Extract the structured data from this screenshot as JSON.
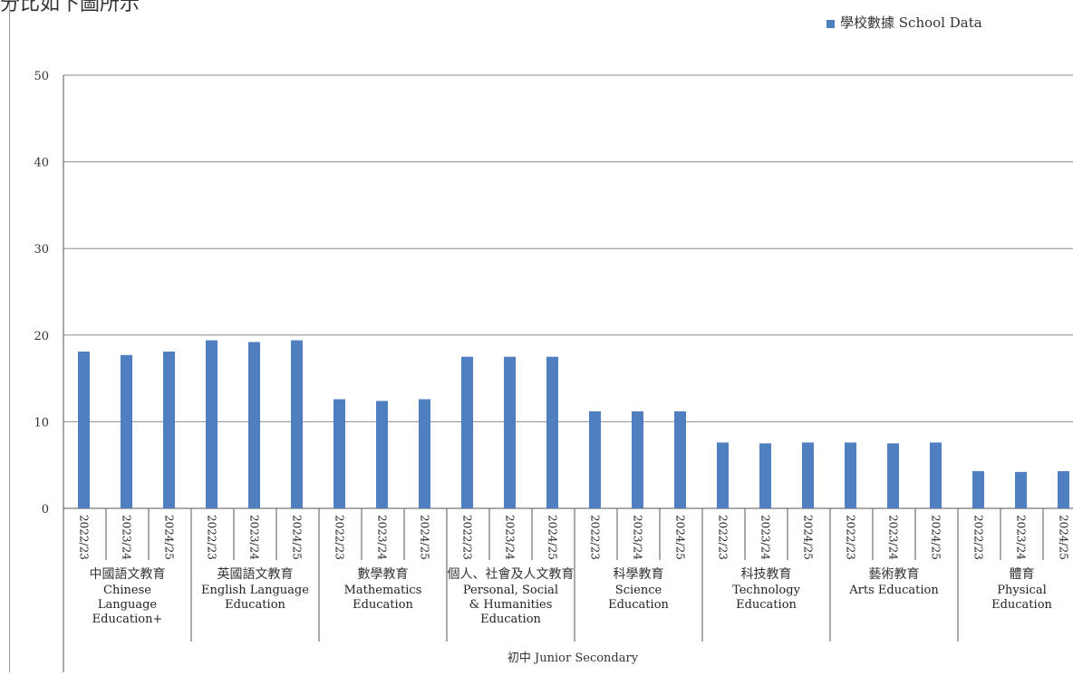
{
  "top_text": "分比如下圖所示",
  "chart_data": {
    "type": "bar",
    "legend": {
      "label": "學校數據 School Data",
      "color": "#4f7fbf",
      "position": "top-right"
    },
    "ylim": [
      0,
      50
    ],
    "yticks": [
      0,
      10,
      20,
      30,
      40,
      50
    ],
    "grid": true,
    "years": [
      "2022/23",
      "2023/24",
      "2024/25"
    ],
    "groups": [
      {
        "zh": "中國語文教育",
        "en": [
          "Chinese",
          "Language",
          "Education+"
        ],
        "values": [
          18.1,
          17.7,
          18.1
        ]
      },
      {
        "zh": "英國語文教育",
        "en": [
          "English Language",
          "Education"
        ],
        "values": [
          19.4,
          19.2,
          19.4
        ]
      },
      {
        "zh": "數學教育",
        "en": [
          "Mathematics",
          "Education"
        ],
        "values": [
          12.6,
          12.4,
          12.6
        ]
      },
      {
        "zh": "個人、社會及人文教育",
        "en": [
          "Personal, Social",
          "& Humanities",
          "Education"
        ],
        "values": [
          17.5,
          17.5,
          17.5
        ]
      },
      {
        "zh": "科學教育",
        "en": [
          "Science",
          "Education"
        ],
        "values": [
          11.2,
          11.2,
          11.2
        ]
      },
      {
        "zh": "科技教育",
        "en": [
          "Technology",
          "Education"
        ],
        "values": [
          7.6,
          7.5,
          7.6
        ]
      },
      {
        "zh": "藝術教育",
        "en": [
          "Arts Education"
        ],
        "values": [
          7.6,
          7.5,
          7.6
        ]
      },
      {
        "zh": "體育",
        "en": [
          "Physical",
          "Education"
        ],
        "values": [
          4.3,
          4.2,
          4.3
        ]
      }
    ],
    "xlabel": "初中 Junior Secondary"
  }
}
